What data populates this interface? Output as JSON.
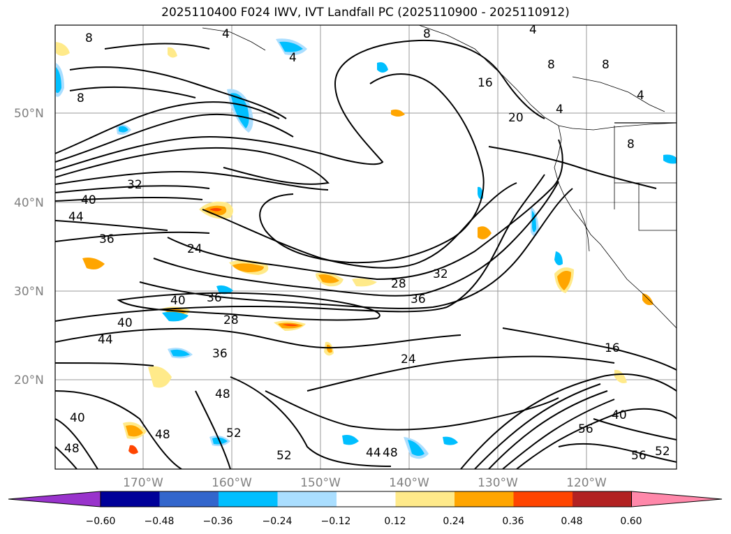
{
  "title": "2025110400 F024 IWV, IVT Landfall PC (2025110900 - 2025110912)",
  "lat_labels": [
    "50°N",
    "40°N",
    "30°N",
    "20°N"
  ],
  "lon_labels": [
    "170°W",
    "160°W",
    "150°W",
    "140°W",
    "130°W",
    "120°W"
  ],
  "colorbar": {
    "colors": [
      "#9933cc",
      "#000099",
      "#3366cc",
      "#00bfff",
      "#aadeff",
      "#ffffff",
      "#ffea8a",
      "#ffa500",
      "#ff4500",
      "#b22222",
      "#ff88aa"
    ],
    "tick_labels": [
      "−0.60",
      "−0.48",
      "−0.36",
      "−0.24",
      "−0.12",
      "0.12",
      "0.24",
      "0.36",
      "0.48",
      "0.60"
    ]
  },
  "contour_labels": [
    "8",
    "4",
    "4",
    "8",
    "4",
    "8",
    "16",
    "4",
    "20",
    "8",
    "4",
    "8",
    "8",
    "32",
    "40",
    "44",
    "36",
    "24",
    "40",
    "36",
    "28",
    "40",
    "28",
    "32",
    "36",
    "44",
    "36",
    "24",
    "48",
    "16",
    "40",
    "48",
    "52",
    "48",
    "44",
    "52",
    "48",
    "56",
    "40",
    "56",
    "52"
  ]
}
